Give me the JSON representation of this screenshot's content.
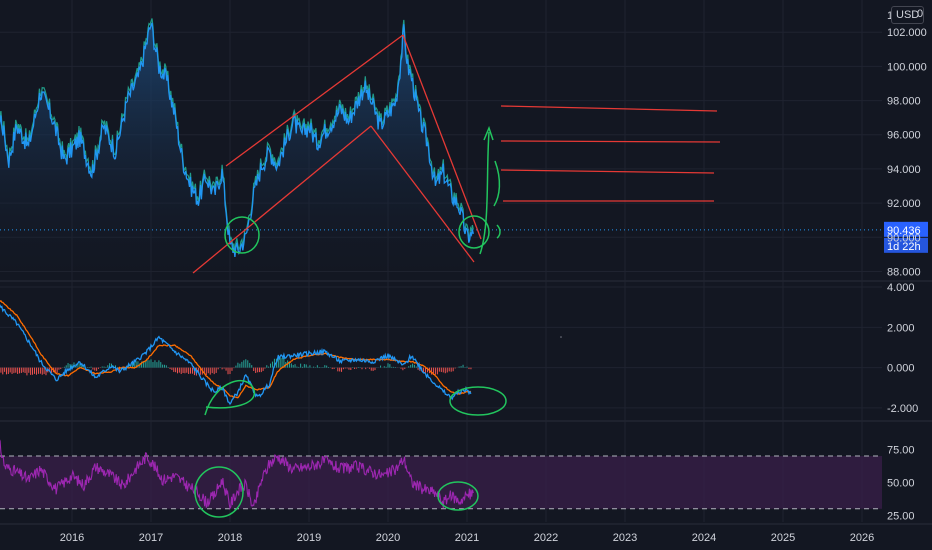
{
  "colors": {
    "background": "#131722",
    "price_line": "#2196f3",
    "price_fill": "#1e3a5c",
    "price_band": "#22ab94",
    "annotation_red": "#e53935",
    "annotation_green": "#22c55e",
    "macd_line": "#2196f3",
    "signal_line": "#ff6d00",
    "hist_pos": "#26a69a",
    "hist_neg": "#ef5350",
    "rsi_line": "#9c27b0",
    "rsi_band": "#3a1f4a",
    "grid": "#1f2330",
    "separator": "#2a2e39",
    "badge": "#2962ff"
  },
  "header": {
    "currency": "USD",
    "scale_label": "0",
    "left_label": "1"
  },
  "price_badge": {
    "value": "90.436",
    "countdown": "1d 22h"
  },
  "chart_data": [
    {
      "type": "line",
      "panel": "price",
      "ylim": [
        87.5,
        103.3
      ],
      "y_ticks": [
        "88.000",
        "90.000",
        "92.000",
        "94.000",
        "96.000",
        "98.000",
        "100.000",
        "102.000"
      ],
      "x_ticks": [
        "2016",
        "2017",
        "2018",
        "2019",
        "2020",
        "2021",
        "2022",
        "2023",
        "2024",
        "2025",
        "2026"
      ],
      "series": [
        {
          "x": [
            2015.0,
            2015.1,
            2015.2,
            2015.3,
            2015.45,
            2015.6,
            2015.75,
            2015.9,
            2016.1,
            2016.25,
            2016.4,
            2016.55,
            2016.7,
            2016.85,
            2016.95,
            2017.0,
            2017.1,
            2017.2,
            2017.3,
            2017.4,
            2017.5,
            2017.6,
            2017.7,
            2017.8,
            2017.9,
            2018.0,
            2018.1,
            2018.2,
            2018.3,
            2018.4,
            2018.5,
            2018.6,
            2018.7,
            2018.8,
            2018.9,
            2019.0,
            2019.1,
            2019.2,
            2019.3,
            2019.4,
            2019.5,
            2019.6,
            2019.7,
            2019.8,
            2019.9,
            2020.0,
            2020.1,
            2020.15,
            2020.2,
            2020.25,
            2020.3,
            2020.4,
            2020.5,
            2020.6,
            2020.7,
            2020.8,
            2020.9,
            2021.0,
            2021.08
          ],
          "values": [
            95.0,
            97.0,
            94.5,
            96.5,
            95.3,
            98.5,
            97.0,
            94.5,
            95.8,
            93.8,
            96.5,
            95.0,
            98.0,
            99.5,
            101.5,
            102.5,
            100.0,
            99.2,
            97.2,
            94.5,
            93.0,
            92.2,
            93.5,
            92.5,
            93.8,
            89.5,
            89.2,
            90.0,
            92.5,
            94.2,
            95.0,
            94.2,
            95.5,
            96.8,
            96.0,
            96.5,
            95.5,
            96.2,
            96.8,
            97.5,
            96.8,
            97.8,
            98.8,
            97.8,
            96.5,
            97.2,
            98.0,
            99.8,
            102.0,
            100.0,
            99.3,
            97.0,
            95.5,
            93.0,
            93.8,
            92.5,
            91.8,
            90.0,
            90.2
          ]
        }
      ]
    },
    {
      "type": "line",
      "panel": "macd",
      "ylim": [
        -2.6,
        4.2
      ],
      "y_ticks": [
        "4.000",
        "2.000",
        "0.000",
        "-2.000"
      ],
      "series": [
        {
          "x": [
            2014.95,
            2015.1,
            2015.3,
            2015.5,
            2015.6,
            2015.8,
            2015.95,
            2016.1,
            2016.3,
            2016.5,
            2016.6,
            2016.8,
            2016.95,
            2017.1,
            2017.3,
            2017.5,
            2017.6,
            2017.7,
            2017.8,
            2017.9,
            2018.0,
            2018.1,
            2018.2,
            2018.35,
            2018.5,
            2018.6,
            2018.8,
            2019.0,
            2019.2,
            2019.4,
            2019.6,
            2019.8,
            2020.0,
            2020.2,
            2020.3,
            2020.45,
            2020.6,
            2020.7,
            2020.8,
            2020.9,
            2021.0,
            2021.05
          ],
          "values": [
            3.5,
            3.0,
            2.2,
            1.0,
            0.3,
            -0.6,
            -0.1,
            0.3,
            -0.5,
            0.1,
            -0.2,
            0.3,
            0.8,
            1.5,
            0.8,
            0.2,
            -0.3,
            -0.8,
            -1.2,
            -1.0,
            -1.8,
            -1.2,
            -0.4,
            -1.5,
            -0.8,
            0.5,
            0.6,
            0.7,
            0.8,
            0.3,
            0.4,
            0.3,
            0.6,
            0.1,
            0.6,
            -0.2,
            -0.8,
            -1.2,
            -1.5,
            -1.2,
            -1.1,
            -1.3
          ]
        },
        {
          "x": [
            2014.95,
            2015.1,
            2015.3,
            2015.5,
            2015.6,
            2015.8,
            2015.95,
            2016.1,
            2016.3,
            2016.5,
            2016.6,
            2016.8,
            2016.95,
            2017.1,
            2017.3,
            2017.5,
            2017.6,
            2017.7,
            2017.8,
            2017.9,
            2018.0,
            2018.1,
            2018.2,
            2018.35,
            2018.5,
            2018.6,
            2018.8,
            2019.0,
            2019.2,
            2019.4,
            2019.6,
            2019.8,
            2020.0,
            2020.2,
            2020.3,
            2020.45,
            2020.6,
            2020.7,
            2020.8,
            2020.9,
            2021.0,
            2021.05
          ],
          "values": [
            3.0,
            3.3,
            2.6,
            1.4,
            0.7,
            -0.3,
            -0.4,
            0.0,
            -0.3,
            -0.2,
            0.0,
            0.0,
            0.4,
            1.1,
            1.1,
            0.6,
            0.1,
            -0.4,
            -0.8,
            -1.0,
            -1.4,
            -1.5,
            -0.9,
            -1.1,
            -1.0,
            -0.2,
            0.4,
            0.6,
            0.7,
            0.5,
            0.4,
            0.4,
            0.4,
            0.3,
            0.3,
            0.1,
            -0.4,
            -0.9,
            -1.2,
            -1.3,
            -1.2,
            -1.2
          ]
        }
      ]
    },
    {
      "type": "line",
      "panel": "rsi",
      "ylim": [
        20,
        95
      ],
      "y_ticks": [
        "75.00",
        "50.00",
        "25.00"
      ],
      "band": [
        30,
        70
      ],
      "series": [
        {
          "x": [
            2015.0,
            2015.05,
            2015.15,
            2015.3,
            2015.45,
            2015.6,
            2015.8,
            2016.0,
            2016.15,
            2016.3,
            2016.5,
            2016.65,
            2016.8,
            2016.95,
            2017.0,
            2017.15,
            2017.3,
            2017.45,
            2017.6,
            2017.7,
            2017.8,
            2017.9,
            2018.0,
            2018.1,
            2018.2,
            2018.3,
            2018.4,
            2018.5,
            2018.6,
            2018.8,
            2019.0,
            2019.2,
            2019.4,
            2019.6,
            2019.8,
            2019.95,
            2020.1,
            2020.2,
            2020.3,
            2020.45,
            2020.6,
            2020.7,
            2020.8,
            2020.9,
            2021.0,
            2021.08
          ],
          "values": [
            82,
            87,
            62,
            58,
            52,
            60,
            45,
            55,
            48,
            62,
            55,
            47,
            60,
            70,
            66,
            52,
            55,
            48,
            42,
            35,
            40,
            52,
            33,
            44,
            48,
            30,
            52,
            64,
            70,
            60,
            62,
            66,
            60,
            62,
            58,
            55,
            60,
            68,
            50,
            45,
            42,
            35,
            40,
            36,
            40,
            42
          ]
        }
      ]
    }
  ]
}
